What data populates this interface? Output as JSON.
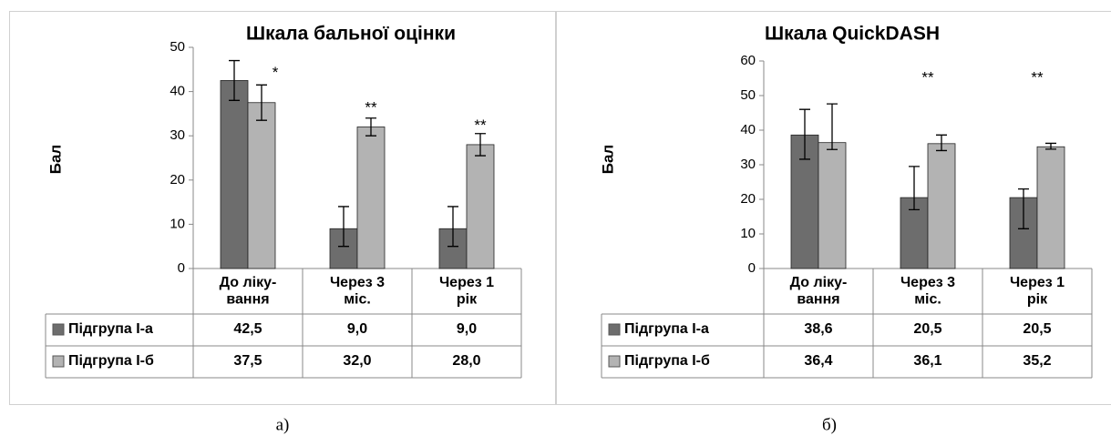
{
  "chart_data": [
    {
      "type": "bar",
      "title": "Шкала бальної оцінки",
      "y_label": "Бал",
      "categories": [
        "До ліку-\nвання",
        "Через 3\nміс.",
        "Через 1\nрік"
      ],
      "ylim": [
        0,
        50
      ],
      "yticks": [
        0,
        10,
        20,
        30,
        40,
        50
      ],
      "series": [
        {
          "name": "Підгрупа І-а",
          "color": "#6d6d6d",
          "values": [
            42.5,
            9.0,
            9.0
          ],
          "value_labels": [
            "42,5",
            "9,0",
            "9,0"
          ],
          "errors": [
            [
              4.5,
              4.5
            ],
            [
              4,
              5
            ],
            [
              4,
              5
            ]
          ]
        },
        {
          "name": "Підгрупа І-б",
          "color": "#b3b3b3",
          "values": [
            37.5,
            32.0,
            28.0
          ],
          "value_labels": [
            "37,5",
            "32,0",
            "28,0"
          ],
          "errors": [
            [
              4,
              4
            ],
            [
              2,
              2
            ],
            [
              2.5,
              2.5
            ]
          ]
        }
      ],
      "annotations": [
        "*",
        "**",
        "**"
      ],
      "caption": "а)"
    },
    {
      "type": "bar",
      "title": "Шкала QuickDASH",
      "y_label": "Бал",
      "categories": [
        "До ліку-\nвання",
        "Через 3\nміс.",
        "Через 1\nрік"
      ],
      "ylim": [
        0,
        60
      ],
      "yticks": [
        0,
        10,
        20,
        30,
        40,
        50,
        60
      ],
      "series": [
        {
          "name": "Підгрупа І-а",
          "color": "#6d6d6d",
          "values": [
            38.6,
            20.5,
            20.5
          ],
          "value_labels": [
            "38,6",
            "20,5",
            "20,5"
          ],
          "errors": [
            [
              7,
              7.4
            ],
            [
              3.5,
              9
            ],
            [
              9,
              2.5
            ]
          ]
        },
        {
          "name": "Підгрупа І-б",
          "color": "#b3b3b3",
          "values": [
            36.4,
            36.1,
            35.2
          ],
          "value_labels": [
            "36,4",
            "36,1",
            "35,2"
          ],
          "errors": [
            [
              2,
              11.2
            ],
            [
              2,
              2.5
            ],
            [
              0.7,
              1
            ]
          ]
        }
      ],
      "annotations": [
        "**",
        "**"
      ],
      "caption": "б)"
    }
  ]
}
